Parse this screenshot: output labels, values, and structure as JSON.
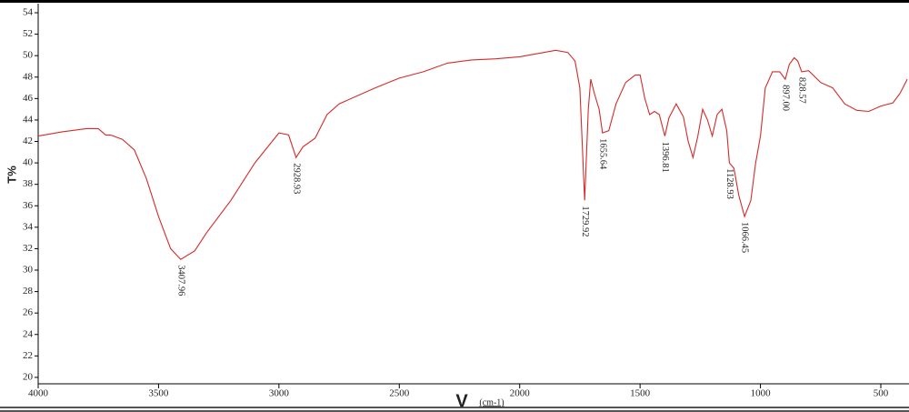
{
  "chart_data": {
    "type": "line",
    "y_label": "T%",
    "x_label": "V",
    "x_unit": "(cm-1)",
    "xlim": [
      4000,
      383
    ],
    "ylim": [
      19.4,
      54.85
    ],
    "xticks": [
      4000,
      3500,
      3000,
      2500,
      2000,
      1500,
      1000,
      500
    ],
    "yticks": [
      20,
      22,
      24,
      26,
      28,
      30,
      32,
      34,
      36,
      38,
      40,
      42,
      44,
      46,
      48,
      50,
      52,
      54
    ],
    "series": [
      {
        "color": "#d42a2a",
        "x": [
          4000,
          3900,
          3800,
          3750,
          3720,
          3700,
          3650,
          3600,
          3550,
          3500,
          3450,
          3408,
          3350,
          3300,
          3200,
          3100,
          3000,
          2960,
          2929,
          2900,
          2850,
          2800,
          2750,
          2600,
          2500,
          2400,
          2300,
          2200,
          2100,
          2000,
          1900,
          1850,
          1800,
          1770,
          1750,
          1730,
          1715,
          1705,
          1690,
          1670,
          1656,
          1630,
          1600,
          1560,
          1520,
          1500,
          1480,
          1460,
          1440,
          1420,
          1397,
          1380,
          1350,
          1320,
          1300,
          1280,
          1260,
          1240,
          1220,
          1200,
          1180,
          1160,
          1140,
          1129,
          1110,
          1090,
          1066,
          1040,
          1020,
          1000,
          980,
          950,
          920,
          897,
          880,
          860,
          845,
          829,
          800,
          750,
          700,
          650,
          600,
          550,
          500,
          450,
          420,
          390
        ],
        "values": [
          42.5,
          42.9,
          43.2,
          43.2,
          42.6,
          42.6,
          42.2,
          41.2,
          38.5,
          35,
          32,
          31,
          31.8,
          33.5,
          36.5,
          40,
          42.8,
          42.6,
          40.5,
          41.5,
          42.3,
          44.5,
          45.5,
          47,
          47.9,
          48.5,
          49.3,
          49.6,
          49.7,
          49.9,
          50.3,
          50.5,
          50.3,
          49.5,
          47,
          36.5,
          45,
          47.8,
          46.5,
          45,
          42.8,
          43,
          45.5,
          47.5,
          48.2,
          48.2,
          46,
          44.5,
          44.8,
          44.5,
          42.5,
          44.2,
          45.5,
          44.3,
          42,
          40.5,
          42.5,
          45,
          44,
          42.5,
          44.5,
          45,
          43,
          40,
          39.5,
          37,
          35,
          36.5,
          40,
          42.5,
          47,
          48.5,
          48.5,
          47.8,
          49.2,
          49.8,
          49.5,
          48.5,
          48.6,
          47.5,
          47,
          45.5,
          44.9,
          44.8,
          45.3,
          45.6,
          46.5,
          47.8
        ]
      }
    ],
    "annotations": [
      {
        "x": 3407.96,
        "y": 31,
        "label": "3407.96"
      },
      {
        "x": 2928.93,
        "y": 40.5,
        "label": "2928.93"
      },
      {
        "x": 1729.92,
        "y": 36.5,
        "label": "1729.92"
      },
      {
        "x": 1655.64,
        "y": 42.8,
        "label": "1655.64"
      },
      {
        "x": 1396.81,
        "y": 42.5,
        "label": "1396.81"
      },
      {
        "x": 1128.93,
        "y": 40,
        "label": "1128.93"
      },
      {
        "x": 1066.45,
        "y": 35,
        "label": "1066.45"
      },
      {
        "x": 897.0,
        "y": 47.8,
        "label": "897.00"
      },
      {
        "x": 828.57,
        "y": 48.5,
        "label": "828.57"
      }
    ]
  }
}
